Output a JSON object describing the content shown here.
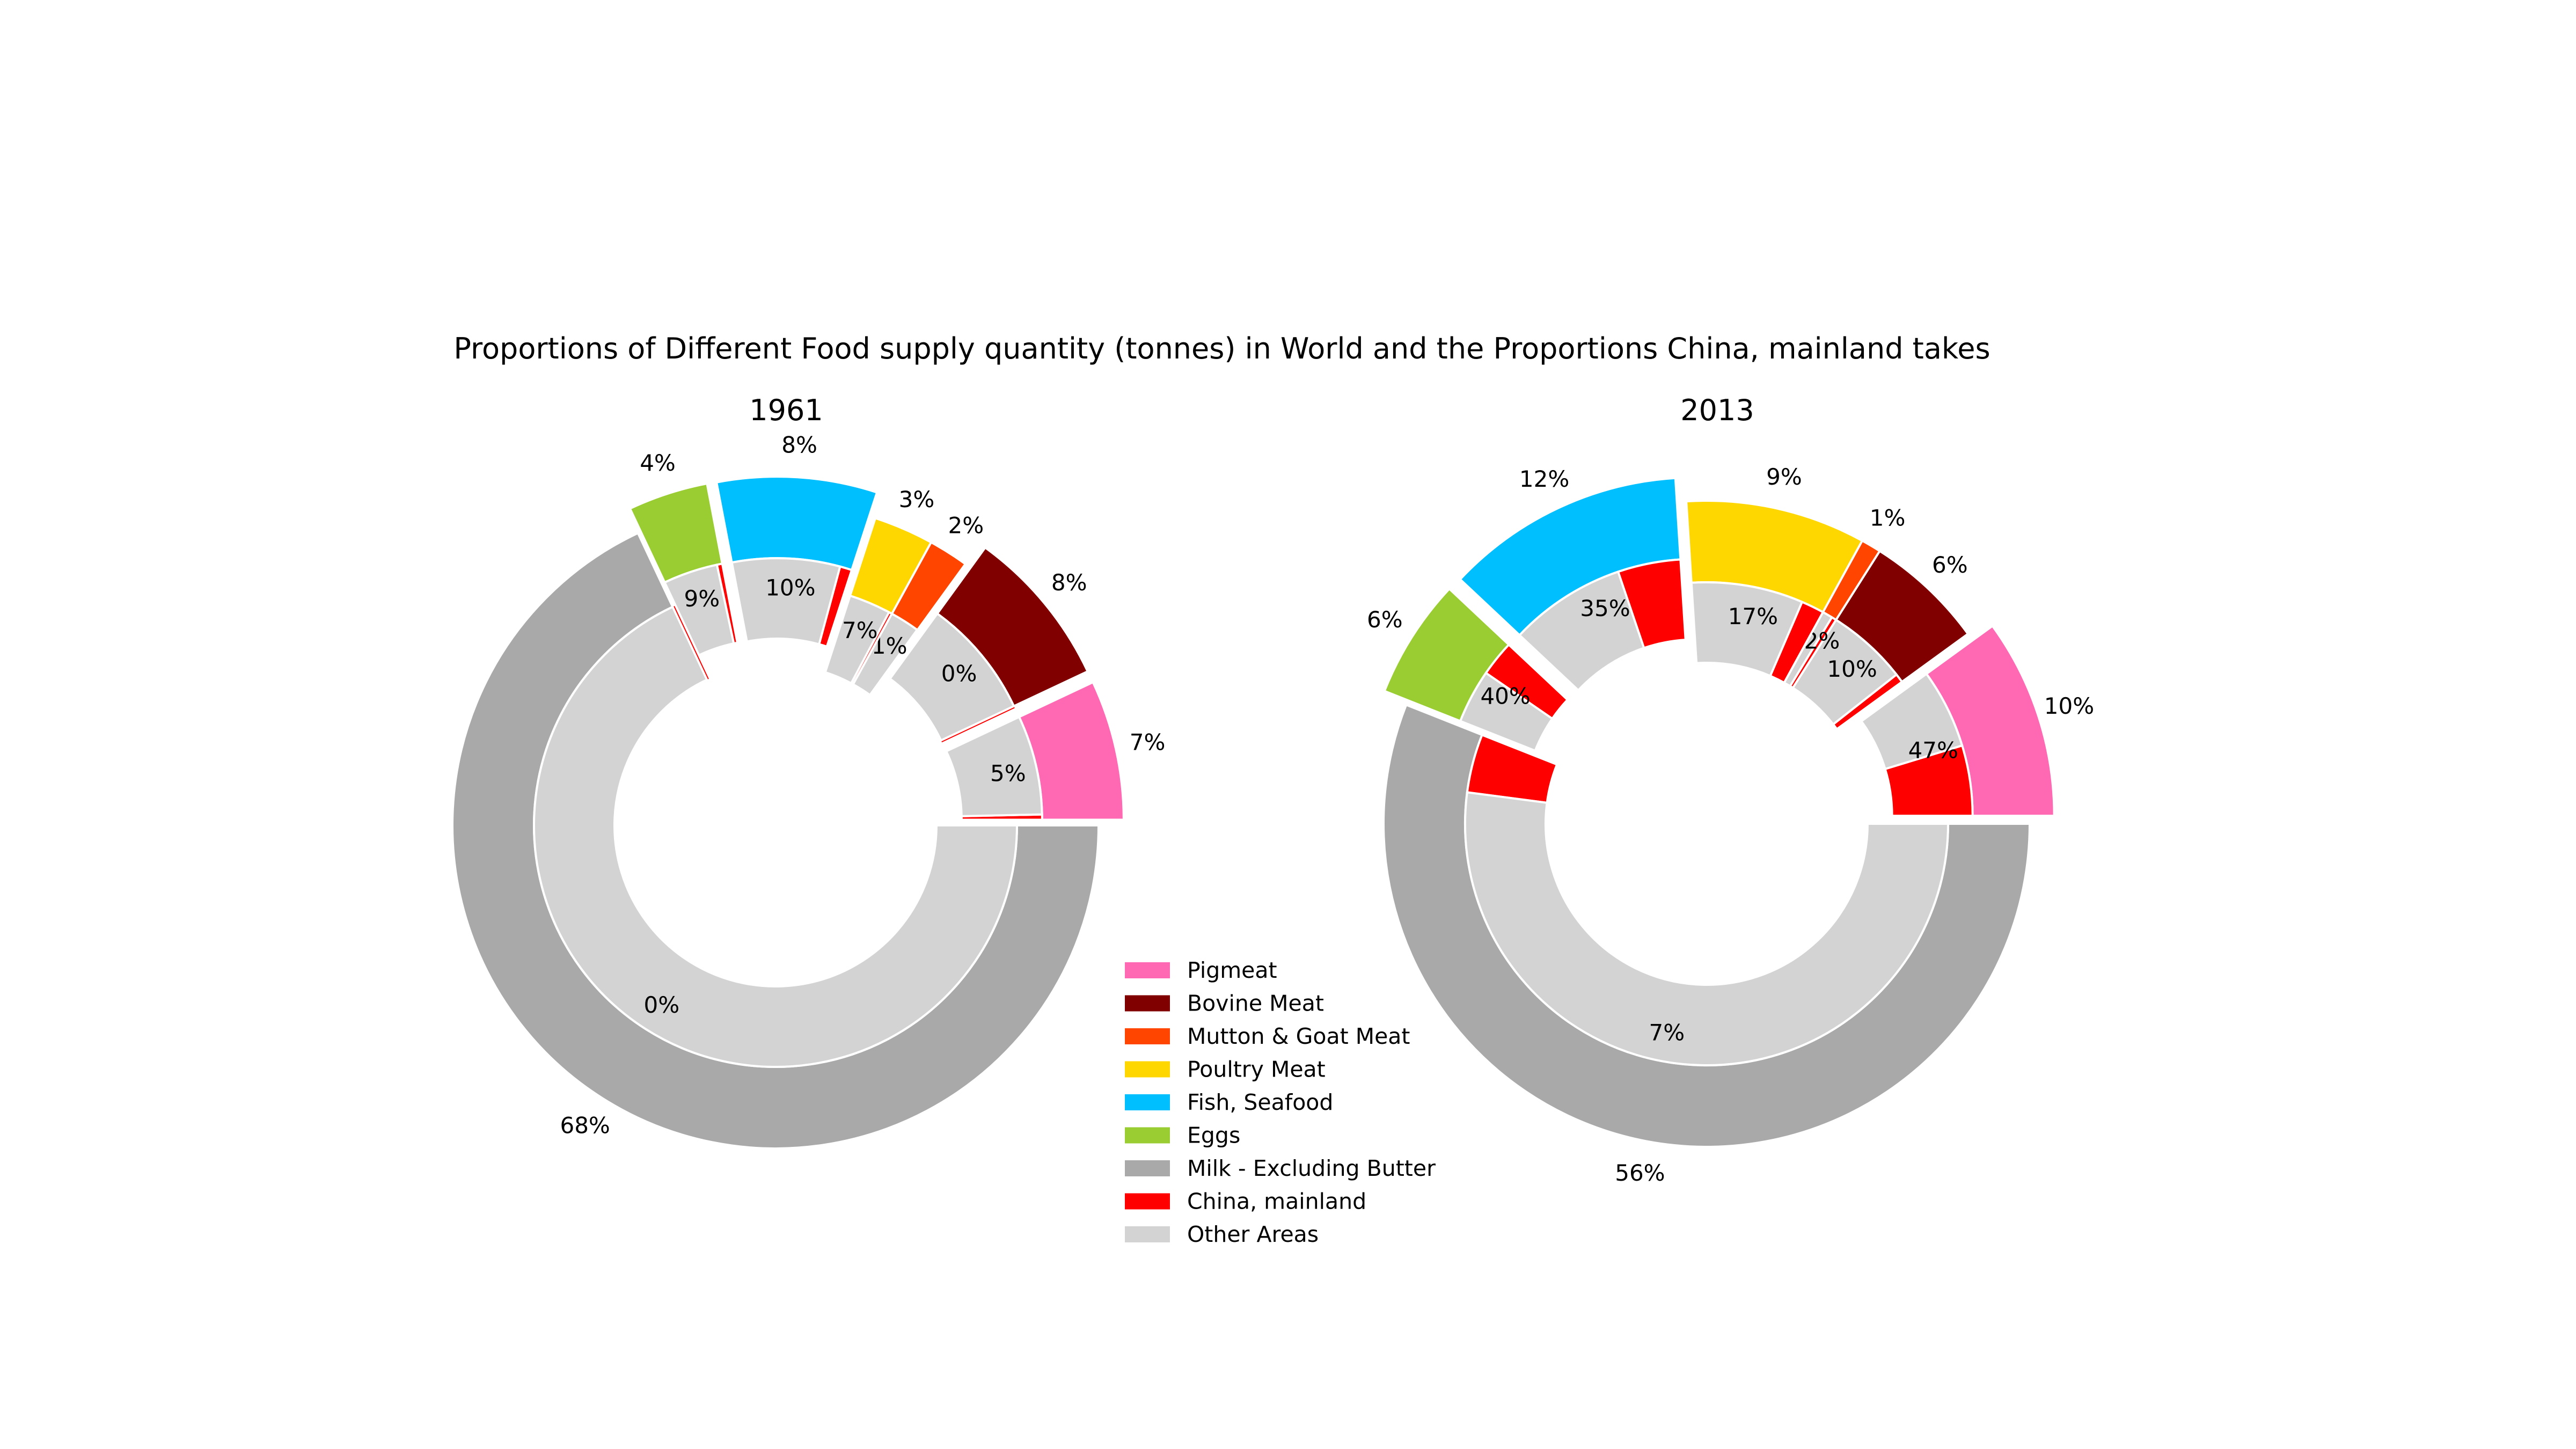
{
  "chart_data": {
    "type": "pie",
    "title": "Proportions of Different Food supply quantity (tonnes) in World and the Proportions China, mainland takes",
    "categories": [
      "Pigmeat",
      "Bovine Meat",
      "Mutton & Goat Meat",
      "Poultry Meat",
      "Fish, Seafood",
      "Eggs",
      "Milk - Excluding Butter"
    ],
    "colors": {
      "Pigmeat": "#ff69b4",
      "Bovine Meat": "#800000",
      "Mutton & Goat Meat": "#ff4500",
      "Poultry Meat": "#ffd700",
      "Fish, Seafood": "#00bfff",
      "Eggs": "#9acd32",
      "Milk - Excluding Butter": "#a9a9a9",
      "China, mainland": "#ff0000",
      "Other Areas": "#d3d3d3"
    },
    "legend": {
      "placement": "center",
      "entries": [
        "Pigmeat",
        "Bovine Meat",
        "Mutton & Goat Meat",
        "Poultry Meat",
        "Fish, Seafood",
        "Eggs",
        "Milk - Excluding Butter",
        "China, mainland",
        "Other Areas"
      ]
    },
    "charts": [
      {
        "subtitle": "1961",
        "world_share": [
          7,
          8,
          2,
          3,
          8,
          4,
          68
        ],
        "world_share_labels": [
          "7%",
          "8%",
          "2%",
          "3%",
          "8%",
          "4%",
          "68%"
        ],
        "china_share": [
          5,
          0,
          1,
          7,
          10,
          9,
          0
        ],
        "china_share_labels": [
          "5%",
          "0%",
          "1%",
          "7%",
          "10%",
          "9%",
          "0%"
        ],
        "explode": [
          1,
          1,
          0,
          0,
          1,
          1,
          0
        ]
      },
      {
        "subtitle": "2013",
        "world_share": [
          10,
          6,
          1,
          9,
          12,
          6,
          56
        ],
        "world_share_labels": [
          "10%",
          "6%",
          "1%",
          "9%",
          "12%",
          "6%",
          "56%"
        ],
        "china_share": [
          47,
          10,
          32,
          17,
          35,
          40,
          7
        ],
        "china_share_labels": [
          "47%",
          "10%",
          "32%",
          "17%",
          "35%",
          "40%",
          "7%"
        ],
        "explode": [
          1,
          0,
          0,
          0,
          1,
          1,
          0
        ]
      }
    ]
  }
}
